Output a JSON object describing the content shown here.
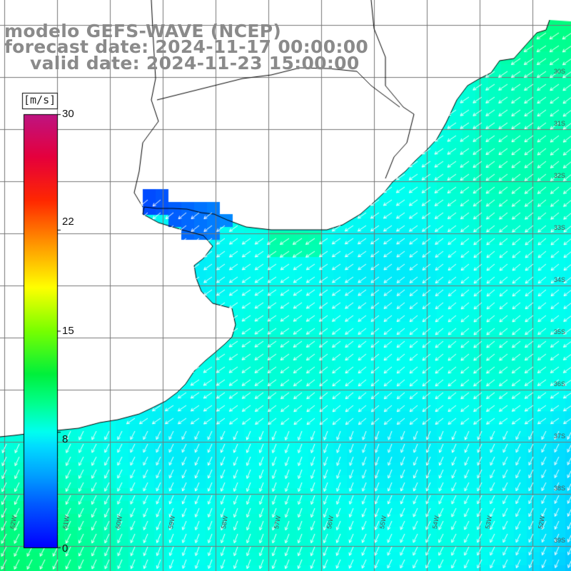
{
  "title": {
    "line1": "modelo GEFS-WAVE (NCEP)",
    "line2": "forecast date: 2024-11-17 00:00:00",
    "line3": "valid date: 2024-11-23 15:00:00"
  },
  "colorbar": {
    "unit": "[m/s]",
    "ticks": [
      "30",
      "22",
      "15",
      "8",
      "0"
    ],
    "tick_values": [
      30,
      22,
      15,
      8,
      0
    ],
    "min": 0,
    "max": 30,
    "colors": [
      "#0000ff",
      "#0096ff",
      "#00eeff",
      "#00ff7a",
      "#00e000",
      "#7aff00",
      "#ffff00",
      "#ffa000",
      "#ff4000",
      "#ff0000",
      "#e0004a",
      "#c0207a"
    ]
  },
  "map": {
    "field": "wind speed",
    "land_color": "#ffffff",
    "wind_direction": "from NE toward SW",
    "lat_labels": [
      "30S",
      "31S",
      "32S",
      "33S",
      "34S",
      "35S",
      "36S",
      "37S",
      "38S",
      "39S"
    ],
    "lon_labels": [
      "62W",
      "61W",
      "60W",
      "59W",
      "58W",
      "57W",
      "56W",
      "55W",
      "54W",
      "53W",
      "52W"
    ]
  }
}
